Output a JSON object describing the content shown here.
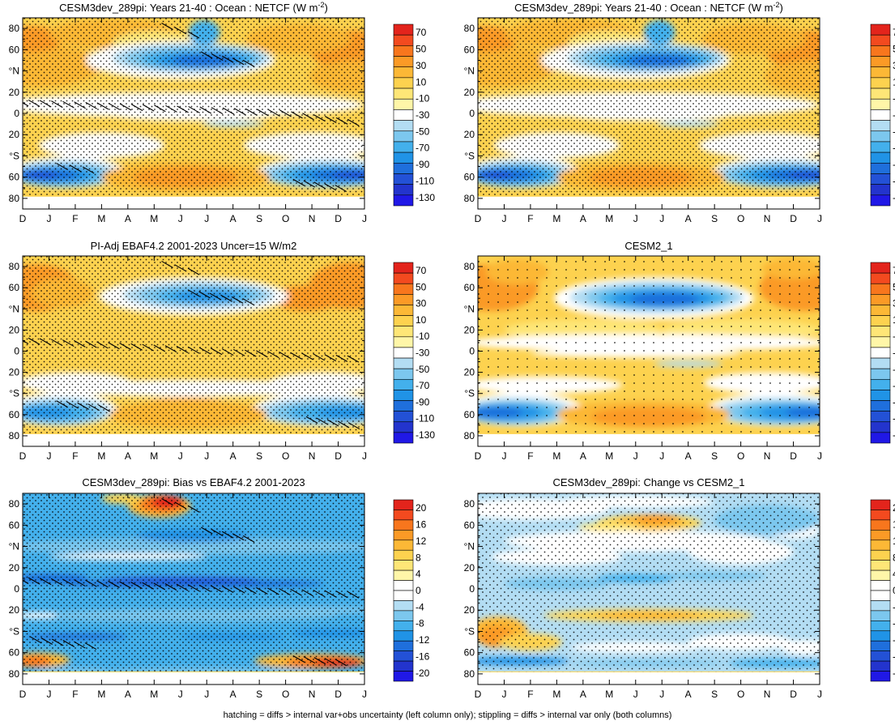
{
  "figure": {
    "footer_note": "hatching = diffs > internal var+obs uncertainty (left column only); stippling = diffs > internal var only (both columns)"
  },
  "months": [
    "D",
    "J",
    "F",
    "M",
    "A",
    "M",
    "J",
    "J",
    "A",
    "S",
    "O",
    "N",
    "D",
    "J"
  ],
  "lat_ticks": [
    {
      "lat": 80,
      "label": "80"
    },
    {
      "lat": 70,
      "label": ""
    },
    {
      "lat": 60,
      "label": "60"
    },
    {
      "lat": 50,
      "label": ""
    },
    {
      "lat": 40,
      "label": "°N"
    },
    {
      "lat": 30,
      "label": ""
    },
    {
      "lat": 20,
      "label": "20"
    },
    {
      "lat": 10,
      "label": ""
    },
    {
      "lat": 0,
      "label": "0"
    },
    {
      "lat": -10,
      "label": ""
    },
    {
      "lat": -20,
      "label": "20"
    },
    {
      "lat": -30,
      "label": ""
    },
    {
      "lat": -40,
      "label": "°S"
    },
    {
      "lat": -50,
      "label": ""
    },
    {
      "lat": -60,
      "label": "60"
    },
    {
      "lat": -70,
      "label": ""
    },
    {
      "lat": -80,
      "label": "80"
    }
  ],
  "colorbars": {
    "abs": {
      "labels": [
        "70",
        "50",
        "30",
        "10",
        "-10",
        "-30",
        "-50",
        "-70",
        "-90",
        "-110",
        "-130"
      ],
      "colors": [
        "#e3241c",
        "#f34a1f",
        "#f8761d",
        "#fb9a26",
        "#fcb836",
        "#fdd24f",
        "#fee677",
        "#fff6a8",
        "#ffffff",
        "#b3ddf3",
        "#7cc7ee",
        "#43b0ec",
        "#2093e6",
        "#1f6fdc",
        "#2351d6",
        "#2334cd",
        "#2018e6"
      ]
    },
    "diff": {
      "labels": [
        "20",
        "16",
        "12",
        "8",
        "4",
        "0",
        "-4",
        "-8",
        "-12",
        "-16",
        "-20"
      ],
      "colors": [
        "#e3241c",
        "#f34a1f",
        "#f8761d",
        "#fb9a26",
        "#fcb836",
        "#fdd24f",
        "#fee677",
        "#fff6a8",
        "#ffffff",
        "#ffffff",
        "#b3ddf3",
        "#7cc7ee",
        "#43b0ec",
        "#2093e6",
        "#1f6fdc",
        "#2351d6",
        "#2334cd",
        "#2018e6"
      ]
    }
  },
  "panels": [
    {
      "id": "p1",
      "title": "CESM3dev_289pi: Years 21-40 : Ocean : NETCF (W m",
      "title_sup": "-2",
      "title_end": ")",
      "scale": "abs",
      "stipple": "dense",
      "hatch": true,
      "pattern": "model"
    },
    {
      "id": "p2",
      "title": "CESM3dev_289pi: Years 21-40 : Ocean : NETCF (W m",
      "title_sup": "-2",
      "title_end": ")",
      "scale": "abs",
      "stipple": "dense",
      "hatch": false,
      "pattern": "model"
    },
    {
      "id": "p3",
      "title": "PI-Adj EBAF4.2 2001-2023 Uncer=15 W/m2",
      "title_sup": "",
      "title_end": "",
      "scale": "abs",
      "stipple": "dense",
      "hatch": true,
      "pattern": "obs"
    },
    {
      "id": "p4",
      "title": "CESM2_1",
      "title_sup": "",
      "title_end": "",
      "scale": "abs",
      "stipple": "sparse",
      "hatch": false,
      "pattern": "cesm2"
    },
    {
      "id": "p5",
      "title": "CESM3dev_289pi: Bias vs EBAF4.2 2001-2023",
      "title_sup": "",
      "title_end": "",
      "scale": "diff",
      "stipple": "dense",
      "hatch": true,
      "pattern": "bias"
    },
    {
      "id": "p6",
      "title": "CESM3dev_289pi: Change vs CESM2_1",
      "title_sup": "",
      "title_end": "",
      "scale": "diff",
      "stipple": "medium",
      "hatch": false,
      "pattern": "change"
    }
  ],
  "chart_data": [
    {
      "type": "heatmap",
      "title": "CESM3dev_289pi: Years 21-40 : Ocean : NETCF (W m-2)",
      "x": "month (D..J)",
      "y": "latitude",
      "ylim": [
        -90,
        90
      ],
      "features": [
        {
          "region": "NH mid-lat summer (May-Aug, 40-60N)",
          "value": -90
        },
        {
          "region": "SH mid-lat (Nov-Mar, 50-65S)",
          "value": -110
        },
        {
          "region": "SH winter (Jun-Jul, 60S)",
          "value": 30
        },
        {
          "region": "NH winter high-lat",
          "value": 20
        }
      ]
    },
    {
      "type": "heatmap",
      "title": "CESM3dev_289pi: Years 21-40 : Ocean : NETCF (W m-2)",
      "x": "month (D..J)",
      "y": "latitude",
      "ylim": [
        -90,
        90
      ],
      "features": [
        {
          "region": "NH mid-lat summer",
          "value": -90
        },
        {
          "region": "SH mid-lat summer",
          "value": -110
        },
        {
          "region": "SH winter 60S",
          "value": 30
        }
      ]
    },
    {
      "type": "heatmap",
      "title": "PI-Adj EBAF4.2 2001-2023 Uncer=15 W/m2",
      "x": "month (D..J)",
      "y": "latitude",
      "ylim": [
        -90,
        90
      ],
      "features": [
        {
          "region": "NH mid-lat summer",
          "value": -70
        },
        {
          "region": "SH mid-lat summer",
          "value": -90
        },
        {
          "region": "NH winter high-lat",
          "value": 30
        }
      ]
    },
    {
      "type": "heatmap",
      "title": "CESM2_1",
      "x": "month (D..J)",
      "y": "latitude",
      "ylim": [
        -90,
        90
      ],
      "features": [
        {
          "region": "NH mid-lat summer",
          "value": -100
        },
        {
          "region": "SH mid-lat summer",
          "value": -110
        },
        {
          "region": "SH winter 60S",
          "value": 30
        }
      ]
    },
    {
      "type": "heatmap",
      "title": "CESM3dev_289pi: Bias vs EBAF4.2 2001-2023",
      "x": "month (D..J)",
      "y": "latitude",
      "ylim": [
        -90,
        90
      ],
      "features": [
        {
          "region": "most of domain",
          "value": -12
        },
        {
          "region": "NH high-lat May-Jun",
          "value": 20
        },
        {
          "region": "SH 65-75S Dec-Mar & Oct-Dec",
          "value": 16
        }
      ]
    },
    {
      "type": "heatmap",
      "title": "CESM3dev_289pi: Change vs CESM2_1",
      "x": "month (D..J)",
      "y": "latitude",
      "ylim": [
        -90,
        90
      ],
      "features": [
        {
          "region": "NH 60-70N Jun-Jul",
          "value": 12
        },
        {
          "region": "SH 40-60S Dec-Mar",
          "value": 10
        },
        {
          "region": "0-30N",
          "value": -6
        }
      ]
    }
  ]
}
